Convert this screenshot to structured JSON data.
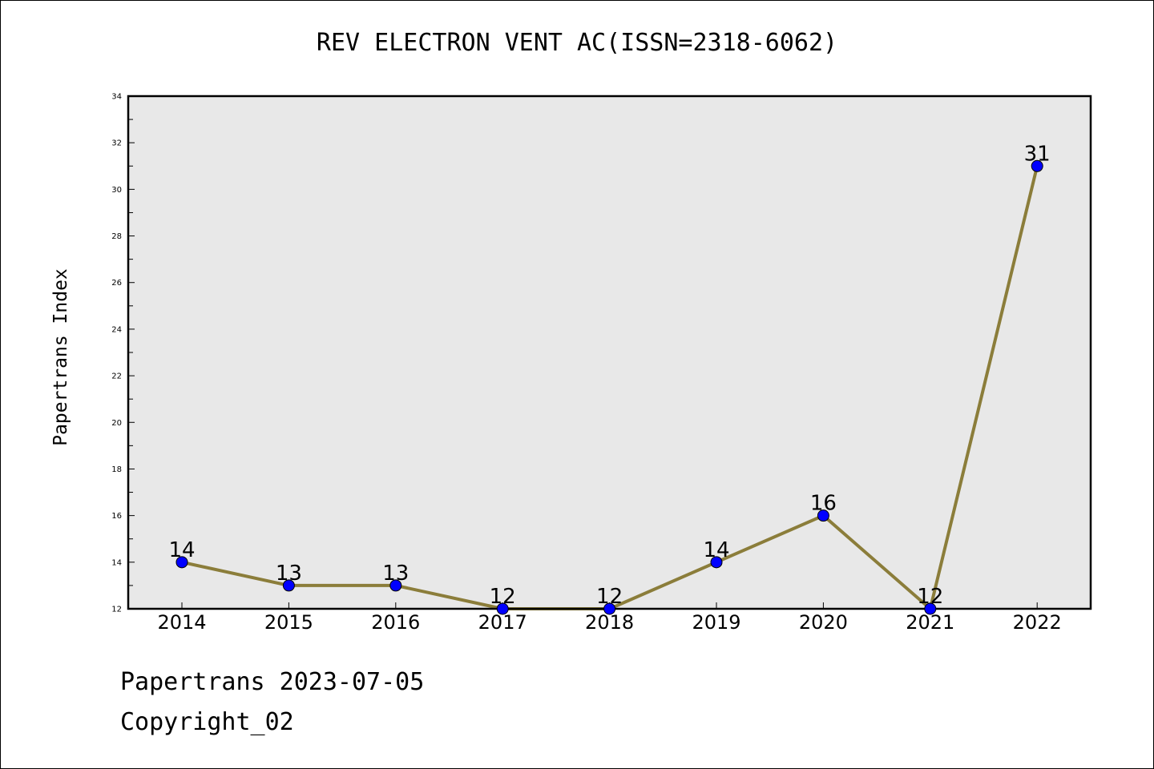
{
  "chart_data": {
    "type": "line",
    "title": "REV ELECTRON VENT AC(ISSN=2318-6062)",
    "ylabel": "Papertrans Index",
    "xlabel": "",
    "categories": [
      "2014",
      "2015",
      "2016",
      "2017",
      "2018",
      "2019",
      "2020",
      "2021",
      "2022"
    ],
    "series": [
      {
        "values": [
          14,
          13,
          13,
          12,
          12,
          14,
          16,
          12,
          31
        ]
      }
    ],
    "ylim": [
      12,
      34
    ],
    "yticks": [
      12,
      14,
      16,
      18,
      20,
      22,
      24,
      26,
      28,
      30,
      32,
      34
    ],
    "grid": false,
    "line_color": "#8b7d3a",
    "marker_color": "#0000ff",
    "plot_background": "#e8e8e8"
  },
  "footer": {
    "line1": "Papertrans 2023-07-05",
    "line2": "Copyright_02"
  }
}
